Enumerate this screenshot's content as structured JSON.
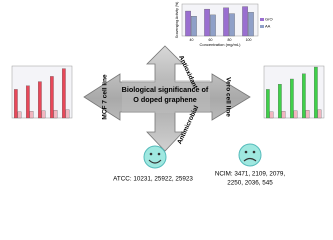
{
  "center_text": [
    "Biological significance of",
    "O doped graphene"
  ],
  "arms": {
    "top": "Antioxidant",
    "left": "MCF 7 cell line",
    "right": "Vero cell line",
    "bottom": "Antimicrobial"
  },
  "panels": {
    "top": {
      "y_label": "Scavenging Activity (%)",
      "x_label": "Concentration (mg/mL)",
      "categories": [
        "40",
        "60",
        "80",
        "100"
      ],
      "ylim": [
        0,
        100
      ],
      "series": [
        {
          "name": "GrO",
          "color": "#9a6fd0",
          "values": [
            78,
            84,
            88,
            92
          ]
        },
        {
          "name": "AA",
          "color": "#8fa0c8",
          "values": [
            62,
            66,
            70,
            74
          ]
        }
      ]
    },
    "left": {
      "ylim": [
        0,
        100
      ],
      "series": [
        {
          "color": "#e8485a",
          "values": [
            55,
            62,
            70,
            80,
            95
          ]
        },
        {
          "color": "#f2b6c0",
          "values": [
            12,
            13,
            14,
            15,
            16
          ]
        }
      ]
    },
    "right": {
      "ylim": [
        0,
        100
      ],
      "series": [
        {
          "color": "#3fd04a",
          "values": [
            55,
            65,
            75,
            85,
            98
          ]
        },
        {
          "color": "#f2b6c0",
          "values": [
            12,
            13,
            14,
            15,
            16
          ]
        }
      ]
    }
  },
  "bacteria": {
    "atcc": "ATCC: 10231, 25922, 25923",
    "ncim": [
      "NCIM: 3471, 2109, 2079,",
      "2250, 2036, 545"
    ]
  }
}
